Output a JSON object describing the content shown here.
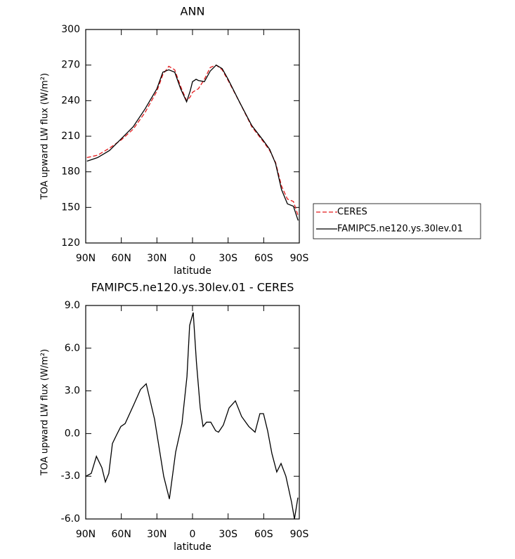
{
  "chart_data": [
    {
      "type": "line",
      "title": "ANN",
      "xlabel": "latitude",
      "ylabel": "TOA upward LW flux (W/m²)",
      "x": [
        89,
        80,
        70,
        60,
        50,
        40,
        30,
        25,
        20,
        15,
        10,
        5,
        2,
        0,
        -3,
        -5,
        -10,
        -15,
        -20,
        -25,
        -30,
        -40,
        -50,
        -60,
        -65,
        -70,
        -75,
        -80,
        -85,
        -89
      ],
      "series": [
        {
          "name": "CERES",
          "color": "#e41a1c",
          "line_style": "dashed",
          "values": [
            192,
            194,
            200,
            207,
            216,
            230,
            248,
            262,
            269,
            266,
            252,
            240,
            243,
            247,
            249,
            250,
            258,
            268,
            270,
            266,
            257,
            238,
            218,
            205,
            198,
            188,
            168,
            157,
            155,
            143
          ]
        },
        {
          "name": "FAMIPC5.ne120.ys.30lev.01",
          "color": "#000000",
          "line_style": "solid",
          "values": [
            189,
            192,
            198,
            208,
            218,
            233,
            250,
            264,
            266,
            264,
            250,
            239,
            248,
            256,
            258,
            257,
            256,
            265,
            270,
            267,
            258,
            238,
            219,
            206,
            199,
            187,
            165,
            153,
            151,
            139
          ]
        }
      ],
      "xlim": [
        90,
        -90
      ],
      "xticks": [
        {
          "value": 90,
          "label": "90N"
        },
        {
          "value": 60,
          "label": "60N"
        },
        {
          "value": 30,
          "label": "30N"
        },
        0,
        {
          "value": -30,
          "label": "30S"
        },
        {
          "value": -60,
          "label": "60S"
        },
        {
          "value": -90,
          "label": "90S"
        }
      ],
      "ylim": [
        120,
        300
      ],
      "yticks": [
        120,
        150,
        180,
        210,
        240,
        270,
        300
      ],
      "legend": "right"
    },
    {
      "type": "line",
      "title": "FAMIPC5.ne120.ys.30lev.01 - CERES",
      "xlabel": "latitude",
      "ylabel": "TOA upward LW flux (W/m²)",
      "x": [
        90,
        85.3,
        81,
        76.4,
        73.4,
        70.5,
        67.5,
        64,
        60.4,
        56.8,
        49.7,
        43.8,
        39,
        32,
        24.3,
        19.5,
        14.2,
        8.9,
        4.7,
        2.4,
        -0.6,
        -3.3,
        -6.5,
        -8.9,
        -11.8,
        -15.4,
        -19.5,
        -21.9,
        -26,
        -30.8,
        -36.1,
        -41.4,
        -47.4,
        -52.7,
        -56.8,
        -59.8,
        -63.3,
        -66.9,
        -71,
        -74.6,
        -78.7,
        -83.4,
        -85.9,
        -88.8
      ],
      "series": [
        {
          "name": "FAMIPC5.ne120.ys.30lev.01 - CERES",
          "color": "#000000",
          "line_style": "solid",
          "values": [
            -3.0,
            -2.8,
            -1.6,
            -2.4,
            -3.4,
            -2.8,
            -0.7,
            -0.1,
            0.5,
            0.7,
            2.0,
            3.1,
            3.5,
            1.0,
            -3.0,
            -4.6,
            -1.3,
            0.7,
            4.0,
            7.6,
            8.5,
            5.0,
            1.8,
            0.5,
            0.8,
            0.8,
            0.2,
            0.1,
            0.6,
            1.8,
            2.3,
            1.2,
            0.5,
            0.1,
            1.4,
            1.4,
            0.2,
            -1.4,
            -2.7,
            -2.1,
            -3.0,
            -4.8,
            -6.0,
            -4.5
          ]
        }
      ],
      "xlim": [
        90,
        -90
      ],
      "xticks": [
        {
          "value": 90,
          "label": "90N"
        },
        {
          "value": 60,
          "label": "60N"
        },
        {
          "value": 30,
          "label": "30N"
        },
        0,
        {
          "value": -30,
          "label": "30S"
        },
        {
          "value": -60,
          "label": "60S"
        },
        {
          "value": -90,
          "label": "90S"
        }
      ],
      "ylim": [
        -6,
        9
      ],
      "yticks": [
        {
          "value": -6,
          "label": "-6.0"
        },
        {
          "value": -3,
          "label": "-3.0"
        },
        {
          "value": 0,
          "label": "0.0"
        },
        {
          "value": 3,
          "label": "3.0"
        },
        {
          "value": 6,
          "label": "6.0"
        },
        {
          "value": 9,
          "label": "9.0"
        }
      ]
    }
  ]
}
